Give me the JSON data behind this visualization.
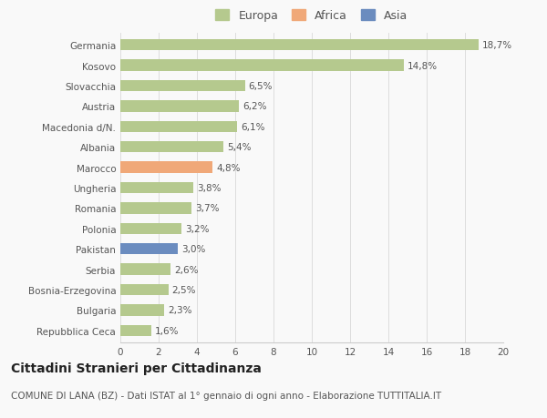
{
  "categories": [
    "Germania",
    "Kosovo",
    "Slovacchia",
    "Austria",
    "Macedonia d/N.",
    "Albania",
    "Marocco",
    "Ungheria",
    "Romania",
    "Polonia",
    "Pakistan",
    "Serbia",
    "Bosnia-Erzegovina",
    "Bulgaria",
    "Repubblica Ceca"
  ],
  "values": [
    18.7,
    14.8,
    6.5,
    6.2,
    6.1,
    5.4,
    4.8,
    3.8,
    3.7,
    3.2,
    3.0,
    2.6,
    2.5,
    2.3,
    1.6
  ],
  "labels": [
    "18,7%",
    "14,8%",
    "6,5%",
    "6,2%",
    "6,1%",
    "5,4%",
    "4,8%",
    "3,8%",
    "3,7%",
    "3,2%",
    "3,0%",
    "2,6%",
    "2,5%",
    "2,3%",
    "1,6%"
  ],
  "colors": [
    "#b5c98e",
    "#b5c98e",
    "#b5c98e",
    "#b5c98e",
    "#b5c98e",
    "#b5c98e",
    "#f0a878",
    "#b5c98e",
    "#b5c98e",
    "#b5c98e",
    "#6b8cbf",
    "#b5c98e",
    "#b5c98e",
    "#b5c98e",
    "#b5c98e"
  ],
  "legend_labels": [
    "Europa",
    "Africa",
    "Asia"
  ],
  "legend_colors": [
    "#b5c98e",
    "#f0a878",
    "#6b8cbf"
  ],
  "title": "Cittadini Stranieri per Cittadinanza",
  "subtitle": "COMUNE DI LANA (BZ) - Dati ISTAT al 1° gennaio di ogni anno - Elaborazione TUTTITALIA.IT",
  "xlim": [
    0,
    20
  ],
  "xticks": [
    0,
    2,
    4,
    6,
    8,
    10,
    12,
    14,
    16,
    18,
    20
  ],
  "background_color": "#f9f9f9",
  "bar_height": 0.55,
  "label_fontsize": 7.5,
  "tick_fontsize": 7.5,
  "title_fontsize": 10,
  "subtitle_fontsize": 7.5
}
